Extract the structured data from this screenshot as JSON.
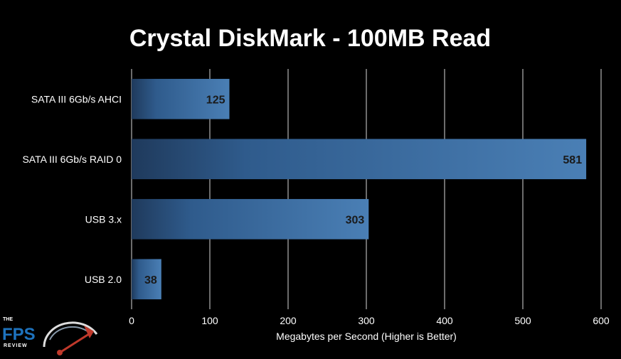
{
  "chart_data": {
    "type": "bar",
    "orientation": "horizontal",
    "title": "Crystal DiskMark - 100MB Read",
    "categories": [
      "SATA III 6Gb/s AHCI",
      "SATA III 6Gb/s RAID 0",
      "USB 3.x",
      "USB 2.0"
    ],
    "values": [
      125,
      581,
      303,
      38
    ],
    "data_labels": [
      "125",
      "581",
      "303",
      "38"
    ],
    "xlabel": "Megabytes per Second (Higher is Better)",
    "ylabel": "",
    "xlim": [
      0,
      600
    ],
    "xticks": [
      0,
      100,
      200,
      300,
      400,
      500,
      600
    ],
    "grid": "vertical",
    "legend": "none",
    "colors": {
      "background": "#000000",
      "bar_dark": "#1f3a5c",
      "bar_light": "#4a7fb5",
      "gridline": "#d9d9d9",
      "text": "#ffffff",
      "data_label": "#1a1a1a"
    }
  },
  "logo": {
    "the": "THE",
    "name": "FPS",
    "tagline": "REVIEW",
    "primary_color": "#1e73be",
    "gauge_color": "#c0392b"
  }
}
